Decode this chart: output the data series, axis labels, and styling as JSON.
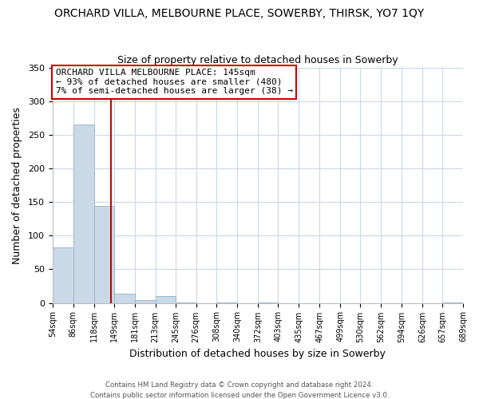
{
  "title": "ORCHARD VILLA, MELBOURNE PLACE, SOWERBY, THIRSK, YO7 1QY",
  "subtitle": "Size of property relative to detached houses in Sowerby",
  "xlabel": "Distribution of detached houses by size in Sowerby",
  "ylabel": "Number of detached properties",
  "bar_edges": [
    54,
    86,
    118,
    149,
    181,
    213,
    245,
    276,
    308,
    340,
    372,
    403,
    435,
    467,
    499,
    530,
    562,
    594,
    626,
    657,
    689
  ],
  "bar_heights": [
    82,
    265,
    144,
    14,
    4,
    10,
    1,
    0,
    1,
    0,
    1,
    0,
    0,
    0,
    0,
    0,
    0,
    0,
    0,
    1
  ],
  "bar_color": "#c9d9e8",
  "bar_edge_color": "#a0b8d0",
  "vline_x": 145,
  "vline_color": "#cc0000",
  "ylim": [
    0,
    350
  ],
  "yticks": [
    0,
    50,
    100,
    150,
    200,
    250,
    300,
    350
  ],
  "annotation_title": "ORCHARD VILLA MELBOURNE PLACE: 145sqm",
  "annotation_line1": "← 93% of detached houses are smaller (480)",
  "annotation_line2": "7% of semi-detached houses are larger (38) →",
  "footer1": "Contains HM Land Registry data © Crown copyright and database right 2024.",
  "footer2": "Contains public sector information licensed under the Open Government Licence v3.0.",
  "bg_color": "#ffffff",
  "grid_color": "#c8d8e8",
  "tick_labels": [
    "54sqm",
    "86sqm",
    "118sqm",
    "149sqm",
    "181sqm",
    "213sqm",
    "245sqm",
    "276sqm",
    "308sqm",
    "340sqm",
    "372sqm",
    "403sqm",
    "435sqm",
    "467sqm",
    "499sqm",
    "530sqm",
    "562sqm",
    "594sqm",
    "626sqm",
    "657sqm",
    "689sqm"
  ]
}
